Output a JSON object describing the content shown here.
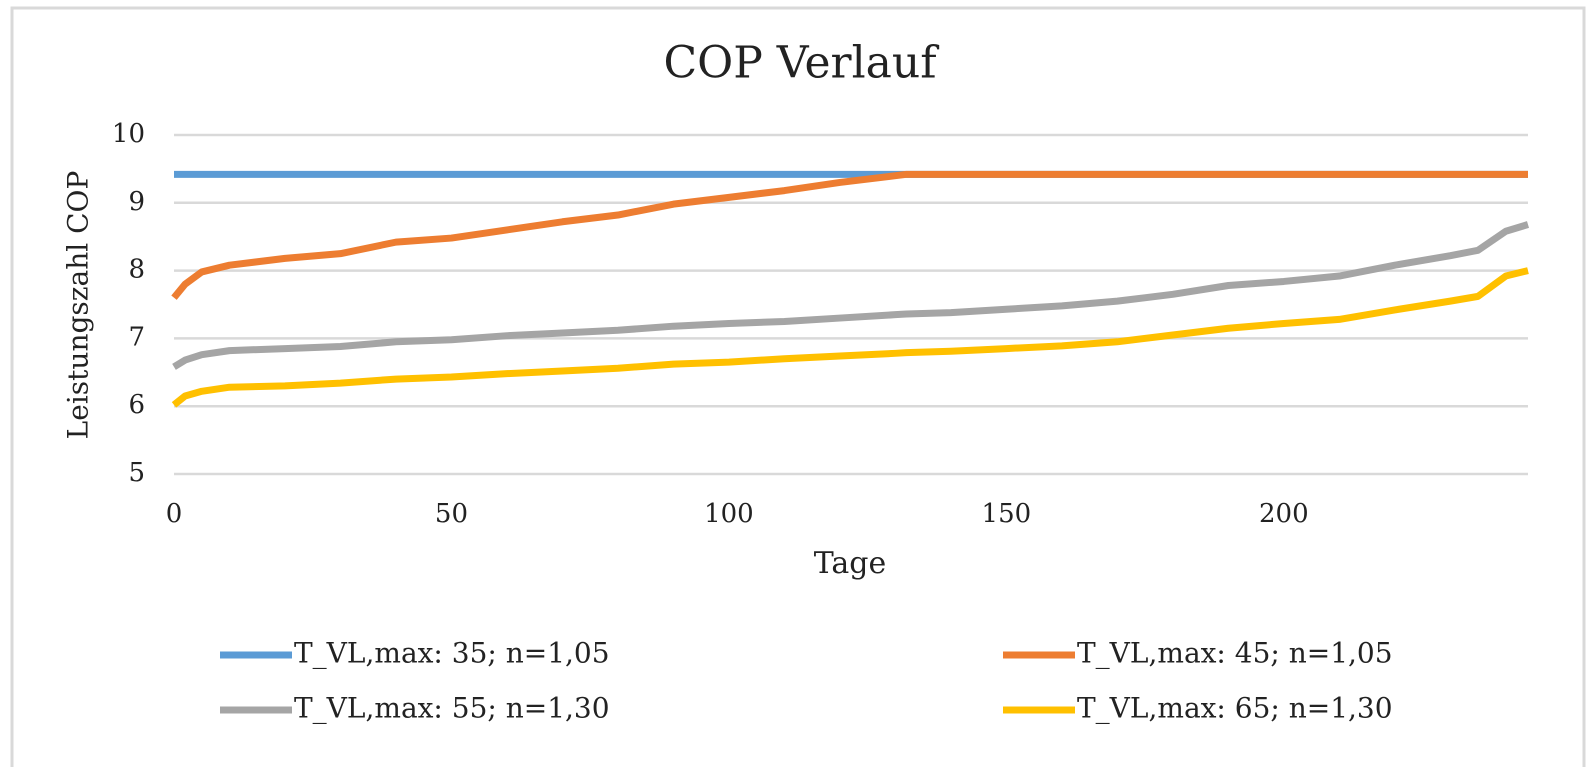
{
  "chart_data": {
    "type": "line",
    "title": "COP Verlauf",
    "x_label": "Tage",
    "y_label": "Leistungszahl COP",
    "x": [
      0,
      2,
      5,
      10,
      20,
      30,
      40,
      50,
      60,
      70,
      80,
      90,
      100,
      110,
      120,
      130,
      132,
      140,
      150,
      160,
      170,
      180,
      190,
      200,
      210,
      220,
      230,
      235,
      240,
      244
    ],
    "series": [
      {
        "name": "T_VL,max: 35; n=1,05",
        "color": "#5b9bd5",
        "values": [
          9.42,
          9.42,
          9.42,
          9.42,
          9.42,
          9.42,
          9.42,
          9.42,
          9.42,
          9.42,
          9.42,
          9.42,
          9.42,
          9.42,
          9.42,
          9.42,
          9.42,
          9.42,
          9.42,
          9.42,
          9.42,
          9.42,
          9.42,
          9.42,
          9.42,
          9.42,
          9.42,
          9.42,
          9.42,
          9.42
        ]
      },
      {
        "name": "T_VL,max: 45; n=1,05",
        "color": "#ed7d31",
        "values": [
          7.6,
          7.8,
          7.98,
          8.08,
          8.18,
          8.25,
          8.42,
          8.48,
          8.6,
          8.72,
          8.82,
          8.98,
          9.08,
          9.18,
          9.3,
          9.4,
          9.42,
          9.42,
          9.42,
          9.42,
          9.42,
          9.42,
          9.42,
          9.42,
          9.42,
          9.42,
          9.42,
          9.42,
          9.42,
          9.42
        ]
      },
      {
        "name": "T_VL,max: 55; n=1,30",
        "color": "#a5a5a5",
        "values": [
          6.58,
          6.68,
          6.76,
          6.82,
          6.85,
          6.88,
          6.95,
          6.98,
          7.04,
          7.08,
          7.12,
          7.18,
          7.22,
          7.25,
          7.3,
          7.35,
          7.36,
          7.38,
          7.43,
          7.48,
          7.55,
          7.65,
          7.78,
          7.84,
          7.92,
          8.08,
          8.22,
          8.3,
          8.58,
          8.68
        ]
      },
      {
        "name": "T_VL,max: 65; n=1,30",
        "color": "#ffc000",
        "values": [
          6.02,
          6.15,
          6.22,
          6.28,
          6.3,
          6.34,
          6.4,
          6.43,
          6.48,
          6.52,
          6.56,
          6.62,
          6.65,
          6.7,
          6.74,
          6.78,
          6.79,
          6.81,
          6.85,
          6.89,
          6.95,
          7.05,
          7.15,
          7.22,
          7.28,
          7.42,
          7.55,
          7.62,
          7.92,
          8.0
        ]
      }
    ],
    "xlim": [
      0,
      244
    ],
    "xticks": [
      0,
      50,
      100,
      150,
      200
    ],
    "ylim": [
      5,
      10
    ],
    "yticks": [
      5,
      6,
      7,
      8,
      9,
      10
    ],
    "grid": true,
    "legend": "bottom"
  }
}
